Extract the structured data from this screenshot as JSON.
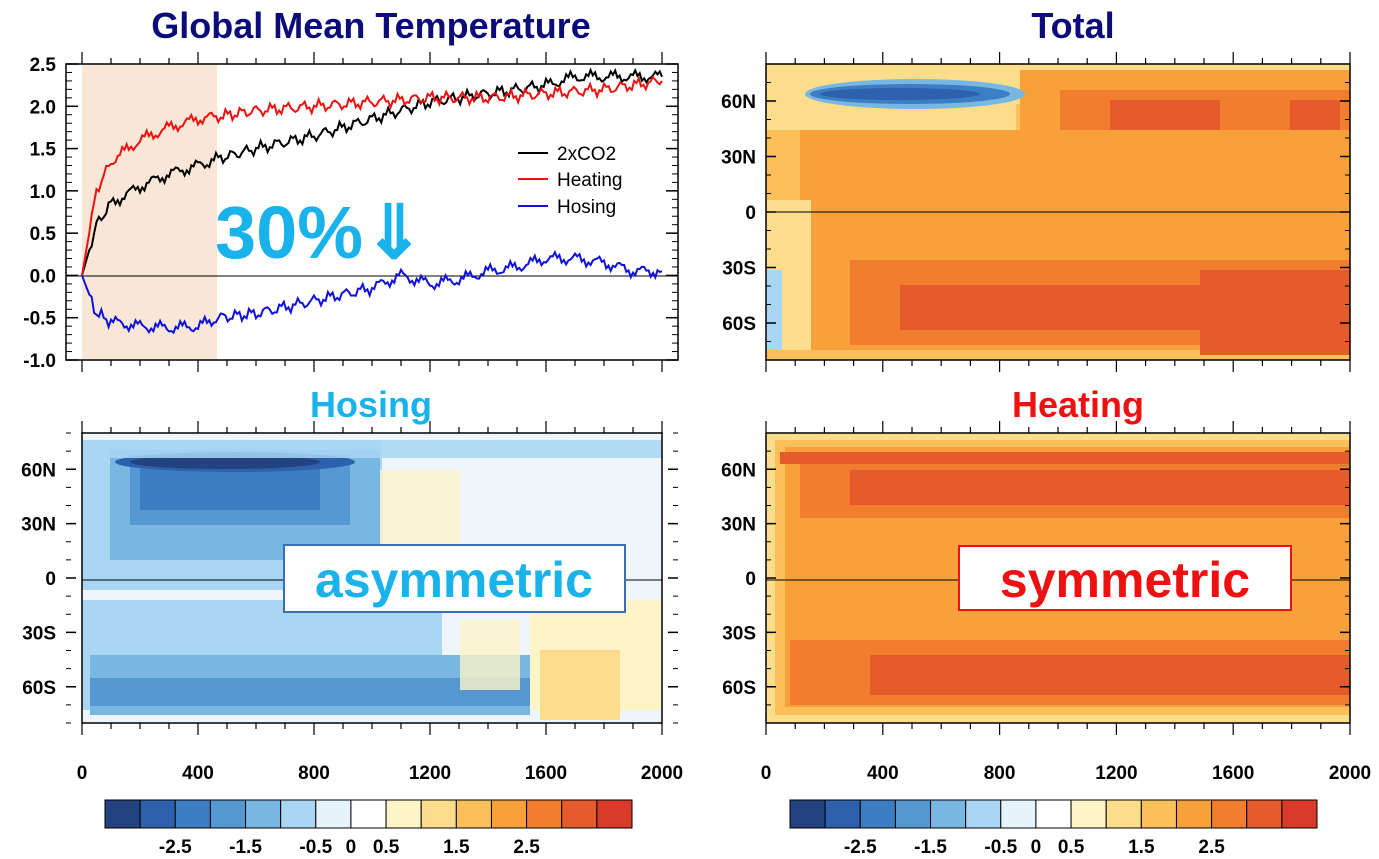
{
  "colors": {
    "title_navy": "#0b0b7a",
    "hosing_title": "#1ab2ea",
    "heating_title": "#ee1111",
    "line_2xco2": "#000000",
    "line_heating": "#ee1111",
    "line_hosing": "#1111dd",
    "shade": "#f8e6d6",
    "asym_text": "#1ab2ea",
    "asym_border": "#3a6fb8",
    "sym_text": "#ee1111",
    "sym_border": "#ee1111"
  },
  "icons": {
    "arrow": "double-down-arrow-icon"
  },
  "chart_data": [
    {
      "type": "line",
      "title": "Global Mean Temperature",
      "xlim": [
        0,
        2000
      ],
      "ylim": [
        -1.0,
        2.5
      ],
      "yticks": [
        "2.5",
        "2.0",
        "1.5",
        "1.0",
        "0.5",
        "0.0",
        "-0.5",
        "-1.0"
      ],
      "shaded_x_range": [
        0,
        470
      ],
      "annotation": "30%⇓",
      "legend_position": "top-right",
      "series": [
        {
          "name": "2xCO2",
          "x": [
            0,
            50,
            100,
            200,
            300,
            400,
            470,
            600,
            800,
            1000,
            1200,
            1400,
            1600,
            1700,
            1800,
            1900,
            2000
          ],
          "values": [
            0.0,
            0.6,
            0.85,
            1.05,
            1.2,
            1.3,
            1.38,
            1.5,
            1.65,
            1.85,
            2.05,
            2.15,
            2.25,
            2.35,
            2.35,
            2.35,
            2.35
          ]
        },
        {
          "name": "Heating",
          "x": [
            0,
            50,
            100,
            200,
            300,
            400,
            470,
            600,
            800,
            1000,
            1200,
            1400,
            1600,
            1800,
            2000
          ],
          "values": [
            0.0,
            1.0,
            1.35,
            1.6,
            1.75,
            1.85,
            1.88,
            1.95,
            2.0,
            2.05,
            2.1,
            2.1,
            2.15,
            2.2,
            2.3
          ]
        },
        {
          "name": "Hosing",
          "x": [
            0,
            50,
            100,
            200,
            300,
            400,
            470,
            600,
            800,
            1000,
            1100,
            1200,
            1300,
            1400,
            1500,
            1600,
            1700,
            1800,
            1900,
            2000
          ],
          "values": [
            0.0,
            -0.45,
            -0.55,
            -0.6,
            -0.62,
            -0.6,
            -0.5,
            -0.45,
            -0.3,
            -0.15,
            0.0,
            -0.1,
            -0.05,
            0.05,
            0.1,
            0.2,
            0.2,
            0.15,
            0.05,
            0.05
          ]
        }
      ]
    },
    {
      "type": "heatmap",
      "title": "Total",
      "xlim": [
        0,
        2000
      ],
      "ylim": [
        -80,
        80
      ],
      "yticks": [
        "60N",
        "30N",
        "0",
        "30S",
        "60S"
      ],
      "xticks": [
        "0",
        "400",
        "800",
        "1200",
        "1600",
        "2000"
      ],
      "colorbar_ticks": [
        "-2.5",
        "-1.5",
        "-0.5",
        "0",
        "0.5",
        "1.5",
        "2.5"
      ]
    },
    {
      "type": "heatmap",
      "title": "Hosing",
      "xlim": [
        0,
        2000
      ],
      "ylim": [
        -80,
        80
      ],
      "yticks": [
        "60N",
        "30N",
        "0",
        "30S",
        "60S"
      ],
      "xticks": [
        "0",
        "400",
        "800",
        "1200",
        "1600",
        "2000"
      ],
      "annotation": "asymmetric",
      "colorbar_ticks": [
        "-2.5",
        "-1.5",
        "-0.5",
        "0",
        "0.5",
        "1.5",
        "2.5"
      ]
    },
    {
      "type": "heatmap",
      "title": "Heating",
      "xlim": [
        0,
        2000
      ],
      "ylim": [
        -80,
        80
      ],
      "yticks": [
        "60N",
        "30N",
        "0",
        "30S",
        "60S"
      ],
      "xticks": [
        "0",
        "400",
        "800",
        "1200",
        "1600",
        "2000"
      ],
      "annotation": "symmetric"
    }
  ],
  "colorbar": {
    "colors": [
      "#22437f",
      "#2d61ad",
      "#3c7ec4",
      "#5598d2",
      "#79b7e3",
      "#a9d6f3",
      "#e7f3fb",
      "#ffffff",
      "#fdf4c8",
      "#fcdd8c",
      "#fbc05a",
      "#f8a03a",
      "#f37d2e",
      "#e65b2c",
      "#d83a29"
    ],
    "tick_labels": [
      "-2.5",
      "-1.5",
      "-0.5",
      "0",
      "0.5",
      "1.5",
      "2.5"
    ]
  }
}
